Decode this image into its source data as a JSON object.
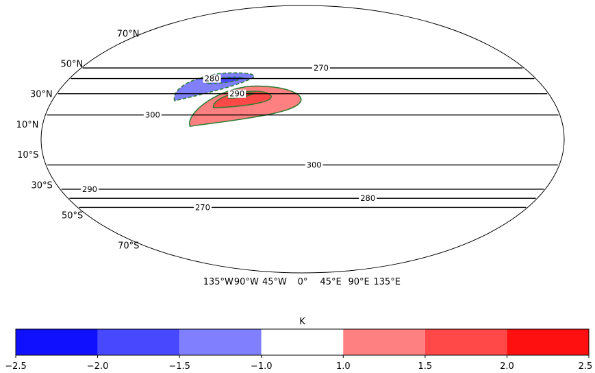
{
  "chart_data": {
    "type": "contour",
    "projection": "Robinson",
    "lat_tick_labels": [
      "70°N",
      "50°N",
      "30°N",
      "10°N",
      "10°S",
      "30°S",
      "50°S",
      "70°S"
    ],
    "lon_tick_labels": [
      "135°W",
      "90°W",
      "45°W",
      "0°",
      "45°E",
      "90°E",
      "135°E"
    ],
    "isolines": {
      "unit": "K",
      "levels": [
        {
          "value": 270,
          "lat": 47,
          "label": "270",
          "label_lon": 15
        },
        {
          "value": 280,
          "lat": 40,
          "label": "280",
          "label_lon": -70
        },
        {
          "value": 290,
          "lat": 30,
          "label": "290",
          "label_lon": -48
        },
        {
          "value": 300,
          "lat": 16,
          "label": "300",
          "label_lon": -105
        },
        {
          "value": 300,
          "lat": -17,
          "label": "300",
          "label_lon": 8
        },
        {
          "value": 290,
          "lat": -33,
          "label": "290",
          "label_lon": -158
        },
        {
          "value": 280,
          "lat": -39,
          "label": "280",
          "label_lon": 50
        },
        {
          "value": 270,
          "lat": -45,
          "label": "270",
          "label_lon": -80
        }
      ]
    },
    "anomalies": [
      {
        "sign": "negative",
        "center_lon": -70,
        "center_lat": 38,
        "min_level": -2.0
      },
      {
        "sign": "positive",
        "center_lon": -45,
        "center_lat": 28,
        "max_level": 2.0
      }
    ],
    "colorbar": {
      "label": "K",
      "boundaries": [
        -2.5,
        -2.0,
        -1.5,
        -1.0,
        1.0,
        1.5,
        2.0,
        2.5
      ],
      "tick_labels": [
        "−2.5",
        "−2.0",
        "−1.5",
        "−1.0",
        "1.0",
        "1.5",
        "2.0",
        "2.5"
      ],
      "colors": [
        "#1010ff",
        "#4848ff",
        "#8080ff",
        "#ffffff",
        "#ff8080",
        "#ff4848",
        "#ff1010"
      ]
    },
    "colors": {
      "negative_edge": "#2e7d32",
      "positive_edge": "#2e7d32",
      "isoline": "#000000"
    }
  }
}
